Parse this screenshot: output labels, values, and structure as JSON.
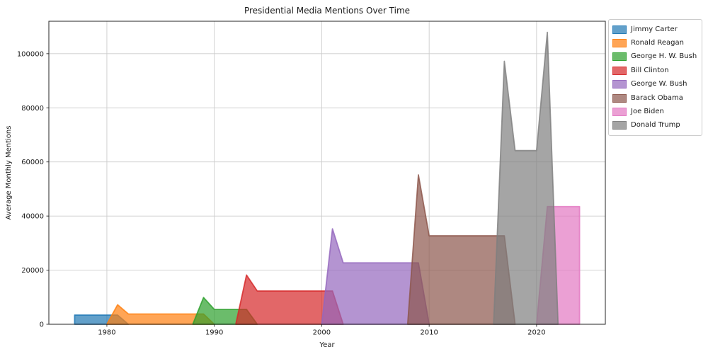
{
  "figure": {
    "title": "Presidential Media Mentions Over Time"
  },
  "chart_data": {
    "type": "area",
    "title": "Presidential Media Mentions Over Time",
    "xlabel": "Year",
    "ylabel": "Average Monthly Mentions",
    "xlim": [
      1974.6,
      2026.4
    ],
    "ylim": [
      0,
      112000
    ],
    "xticks": [
      1980,
      1990,
      2000,
      2010,
      2020
    ],
    "xtick_labels": [
      "1980",
      "1990",
      "2000",
      "2010",
      "2020"
    ],
    "yticks": [
      0,
      20000,
      40000,
      60000,
      80000,
      100000
    ],
    "ytick_labels": [
      "0",
      "20000",
      "40000",
      "60000",
      "80000",
      "100000"
    ],
    "grid": true,
    "grid_color": "#cccccc",
    "fill_alpha": 0.7,
    "legend_position": "outside upper right",
    "series": [
      {
        "name": "Jimmy Carter",
        "color": "#1f77b4",
        "points": [
          [
            1977,
            3400
          ],
          [
            1978,
            3400
          ],
          [
            1979,
            3400
          ],
          [
            1980,
            3400
          ],
          [
            1981,
            3400
          ],
          [
            1982,
            0
          ]
        ]
      },
      {
        "name": "Ronald Reagan",
        "color": "#ff7f0e",
        "points": [
          [
            1980,
            0
          ],
          [
            1981,
            7200
          ],
          [
            1982,
            3800
          ],
          [
            1983,
            3800
          ],
          [
            1984,
            3800
          ],
          [
            1985,
            3800
          ],
          [
            1986,
            3800
          ],
          [
            1987,
            3800
          ],
          [
            1988,
            3800
          ],
          [
            1989,
            3800
          ],
          [
            1990,
            0
          ]
        ]
      },
      {
        "name": "George H. W. Bush",
        "color": "#2ca02c",
        "points": [
          [
            1988,
            0
          ],
          [
            1989,
            9900
          ],
          [
            1990,
            5500
          ],
          [
            1991,
            5500
          ],
          [
            1992,
            5500
          ],
          [
            1993,
            5500
          ],
          [
            1994,
            0
          ]
        ]
      },
      {
        "name": "Bill Clinton",
        "color": "#d62728",
        "points": [
          [
            1992,
            0
          ],
          [
            1993,
            18200
          ],
          [
            1994,
            12300
          ],
          [
            1995,
            12300
          ],
          [
            1996,
            12300
          ],
          [
            1997,
            12300
          ],
          [
            1998,
            12300
          ],
          [
            1999,
            12300
          ],
          [
            2000,
            12300
          ],
          [
            2001,
            12300
          ],
          [
            2002,
            0
          ]
        ]
      },
      {
        "name": "George W. Bush",
        "color": "#9467bd",
        "points": [
          [
            2000,
            0
          ],
          [
            2001,
            35300
          ],
          [
            2002,
            22700
          ],
          [
            2003,
            22700
          ],
          [
            2004,
            22700
          ],
          [
            2005,
            22700
          ],
          [
            2006,
            22700
          ],
          [
            2007,
            22700
          ],
          [
            2008,
            22700
          ],
          [
            2009,
            22700
          ],
          [
            2010,
            0
          ]
        ]
      },
      {
        "name": "Barack Obama",
        "color": "#8c564b",
        "points": [
          [
            2008,
            0
          ],
          [
            2009,
            55200
          ],
          [
            2010,
            32700
          ],
          [
            2011,
            32700
          ],
          [
            2012,
            32700
          ],
          [
            2013,
            32700
          ],
          [
            2014,
            32700
          ],
          [
            2015,
            32700
          ],
          [
            2016,
            32700
          ],
          [
            2017,
            32700
          ],
          [
            2018,
            0
          ]
        ]
      },
      {
        "name": "Joe Biden",
        "color": "#e377c2",
        "points": [
          [
            2020,
            0
          ],
          [
            2021,
            43500
          ],
          [
            2022,
            43500
          ],
          [
            2023,
            43500
          ],
          [
            2024,
            43500
          ]
        ]
      },
      {
        "name": "Donald Trump",
        "color": "#7f7f7f",
        "points": [
          [
            2016,
            0
          ],
          [
            2017,
            97200
          ],
          [
            2018,
            64200
          ],
          [
            2019,
            64200
          ],
          [
            2020,
            64200
          ],
          [
            2021,
            107900
          ],
          [
            2022,
            0
          ]
        ]
      }
    ]
  }
}
